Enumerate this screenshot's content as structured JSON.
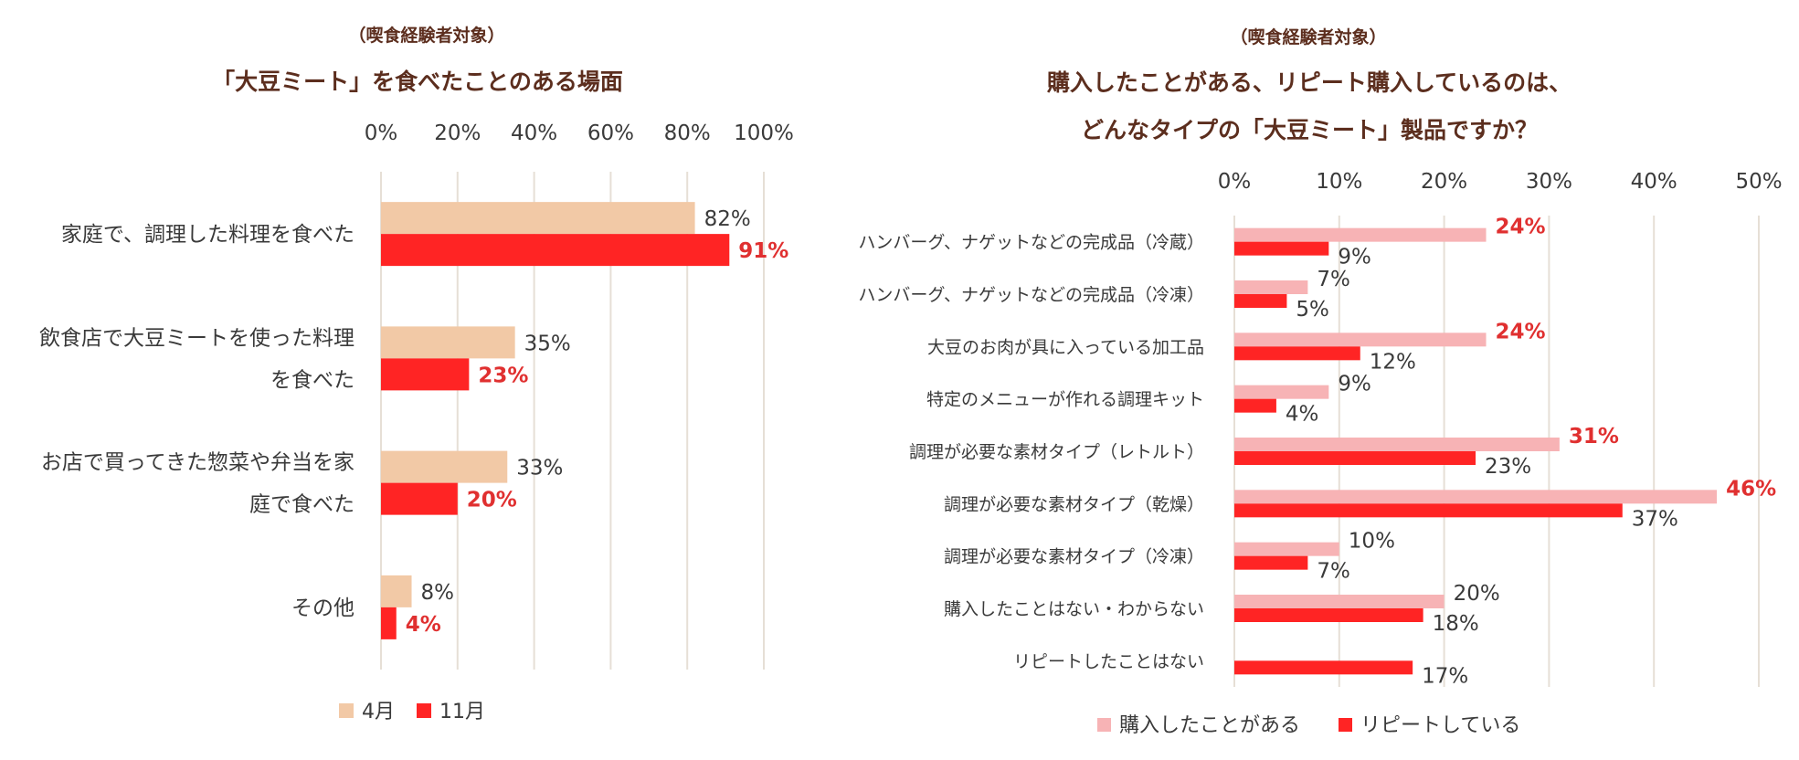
{
  "chart_data": [
    {
      "type": "bar",
      "orientation": "horizontal",
      "subtitle": "（喫食経験者対象）",
      "title": "「大豆ミート」を食べたことのある場面",
      "x_ticks": [
        "0%",
        "20%",
        "40%",
        "60%",
        "80%",
        "100%"
      ],
      "xlim": [
        0,
        100
      ],
      "grid": true,
      "legend_position": "bottom",
      "categories": [
        [
          "家庭で、調理した料理を食べた"
        ],
        [
          "飲食店で大豆ミートを使った料理",
          "を食べた"
        ],
        [
          "お店で買ってきた惣菜や弁当を家",
          "庭で食べた"
        ],
        [
          "その他"
        ]
      ],
      "series": [
        {
          "name": "4月",
          "color": "#f2c9a6",
          "values": [
            82,
            35,
            33,
            8
          ],
          "labels": [
            "82%",
            "35%",
            "33%",
            "8%"
          ]
        },
        {
          "name": "11月",
          "color": "#ff2424",
          "values": [
            91,
            23,
            20,
            4
          ],
          "labels": [
            "91%",
            "23%",
            "20%",
            "4%"
          ],
          "label_style": "bold-red"
        }
      ]
    },
    {
      "type": "bar",
      "orientation": "horizontal",
      "subtitle": "（喫食経験者対象）",
      "title_lines": [
        "購入したことがある、リピート購入しているのは、",
        "どんなタイプの「大豆ミート」製品ですか？"
      ],
      "x_ticks": [
        "0%",
        "10%",
        "20%",
        "30%",
        "40%",
        "50%"
      ],
      "xlim": [
        0,
        50
      ],
      "grid": true,
      "legend_position": "bottom",
      "categories": [
        "ハンバーグ、ナゲットなどの完成品（冷蔵）",
        "ハンバーグ、ナゲットなどの完成品（冷凍）",
        "大豆のお肉が具に入っている加工品",
        "特定のメニューが作れる調理キット",
        "調理が必要な素材タイプ（レトルト）",
        "調理が必要な素材タイプ（乾燥）",
        "調理が必要な素材タイプ（冷凍）",
        "購入したことはない・わからない",
        "リピートしたことはない"
      ],
      "series": [
        {
          "name": "購入したことがある",
          "color": "#f7b3b5",
          "values": [
            24,
            7,
            24,
            9,
            31,
            46,
            10,
            20,
            null
          ],
          "labels": [
            "24%",
            "7%",
            "24%",
            "9%",
            "31%",
            "46%",
            "10%",
            "20%",
            null
          ],
          "label_bold": [
            true,
            false,
            true,
            false,
            true,
            true,
            false,
            false,
            false
          ]
        },
        {
          "name": "リピートしている",
          "color": "#ff2424",
          "values": [
            9,
            5,
            12,
            4,
            23,
            37,
            7,
            18,
            17
          ],
          "labels": [
            "9%",
            "5%",
            "12%",
            "4%",
            "23%",
            "37%",
            "7%",
            "18%",
            "17%"
          ]
        }
      ]
    }
  ]
}
